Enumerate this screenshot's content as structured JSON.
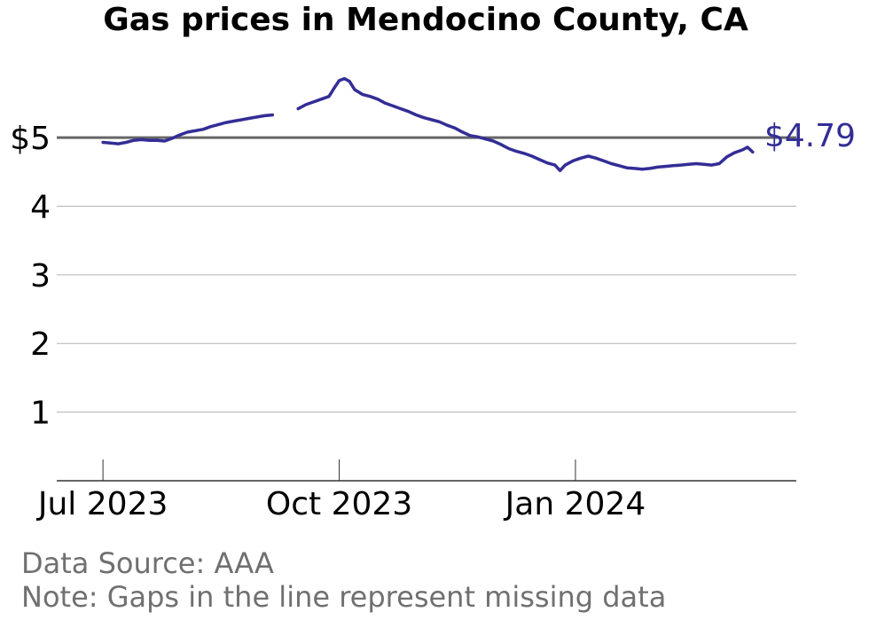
{
  "chart_data": {
    "type": "line",
    "title": "Gas prices in Mendocino County, CA",
    "xlabel": "",
    "ylabel": "",
    "y_ticks": [
      {
        "value": 1,
        "label": "1"
      },
      {
        "value": 2,
        "label": "2"
      },
      {
        "value": 3,
        "label": "3"
      },
      {
        "value": 4,
        "label": "4"
      },
      {
        "value": 5,
        "label": "$5"
      }
    ],
    "ylim": [
      0,
      6.1
    ],
    "x_ticks": [
      {
        "value": "2023-07-01",
        "label": "Jul 2023"
      },
      {
        "value": "2023-10-01",
        "label": "Oct 2023"
      },
      {
        "value": "2024-01-01",
        "label": "Jan 2024"
      }
    ],
    "xlim": [
      "2023-06-13",
      "2024-03-27"
    ],
    "reference_line": {
      "value": 5
    },
    "last_value_label": "$4.79",
    "grid": true,
    "colors": {
      "line": "#332d96",
      "reference": "#666666",
      "grid": "#b3b3b3",
      "axis": "#333333"
    },
    "series": [
      {
        "segments": [
          [
            [
              "2023-07-01",
              4.93
            ],
            [
              "2023-07-04",
              4.92
            ],
            [
              "2023-07-07",
              4.91
            ],
            [
              "2023-07-10",
              4.93
            ],
            [
              "2023-07-13",
              4.96
            ],
            [
              "2023-07-16",
              4.97
            ],
            [
              "2023-07-19",
              4.96
            ],
            [
              "2023-07-22",
              4.96
            ],
            [
              "2023-07-25",
              4.95
            ],
            [
              "2023-07-28",
              4.99
            ],
            [
              "2023-07-31",
              5.04
            ],
            [
              "2023-08-03",
              5.08
            ],
            [
              "2023-08-06",
              5.1
            ],
            [
              "2023-08-09",
              5.12
            ],
            [
              "2023-08-12",
              5.16
            ],
            [
              "2023-08-15",
              5.19
            ],
            [
              "2023-08-18",
              5.22
            ],
            [
              "2023-08-21",
              5.24
            ],
            [
              "2023-08-24",
              5.26
            ],
            [
              "2023-08-27",
              5.28
            ],
            [
              "2023-08-30",
              5.3
            ],
            [
              "2023-09-02",
              5.32
            ],
            [
              "2023-09-05",
              5.33
            ]
          ],
          [
            [
              "2023-09-15",
              5.42
            ],
            [
              "2023-09-18",
              5.48
            ],
            [
              "2023-09-21",
              5.52
            ],
            [
              "2023-09-24",
              5.56
            ],
            [
              "2023-09-27",
              5.6
            ],
            [
              "2023-09-29",
              5.72
            ],
            [
              "2023-10-01",
              5.83
            ],
            [
              "2023-10-03",
              5.86
            ],
            [
              "2023-10-05",
              5.82
            ],
            [
              "2023-10-07",
              5.7
            ],
            [
              "2023-10-10",
              5.63
            ],
            [
              "2023-10-13",
              5.6
            ],
            [
              "2023-10-16",
              5.56
            ],
            [
              "2023-10-19",
              5.5
            ],
            [
              "2023-10-22",
              5.46
            ],
            [
              "2023-10-25",
              5.42
            ],
            [
              "2023-10-28",
              5.38
            ],
            [
              "2023-10-31",
              5.33
            ],
            [
              "2023-11-03",
              5.29
            ],
            [
              "2023-11-06",
              5.26
            ],
            [
              "2023-11-09",
              5.23
            ],
            [
              "2023-11-12",
              5.18
            ],
            [
              "2023-11-15",
              5.14
            ],
            [
              "2023-11-18",
              5.08
            ],
            [
              "2023-11-21",
              5.03
            ],
            [
              "2023-11-24",
              5.01
            ],
            [
              "2023-11-27",
              4.98
            ],
            [
              "2023-11-30",
              4.95
            ],
            [
              "2023-12-03",
              4.9
            ],
            [
              "2023-12-06",
              4.84
            ],
            [
              "2023-12-09",
              4.8
            ],
            [
              "2023-12-12",
              4.77
            ],
            [
              "2023-12-15",
              4.73
            ],
            [
              "2023-12-18",
              4.68
            ],
            [
              "2023-12-21",
              4.63
            ],
            [
              "2023-12-24",
              4.6
            ],
            [
              "2023-12-26",
              4.52
            ],
            [
              "2023-12-28",
              4.6
            ],
            [
              "2023-12-31",
              4.66
            ],
            [
              "2024-01-03",
              4.7
            ],
            [
              "2024-01-06",
              4.73
            ],
            [
              "2024-01-09",
              4.7
            ],
            [
              "2024-01-12",
              4.66
            ],
            [
              "2024-01-15",
              4.62
            ],
            [
              "2024-01-18",
              4.59
            ],
            [
              "2024-01-21",
              4.56
            ],
            [
              "2024-01-24",
              4.55
            ],
            [
              "2024-01-27",
              4.54
            ],
            [
              "2024-01-30",
              4.55
            ],
            [
              "2024-02-02",
              4.57
            ],
            [
              "2024-02-05",
              4.58
            ],
            [
              "2024-02-08",
              4.59
            ],
            [
              "2024-02-11",
              4.6
            ],
            [
              "2024-02-14",
              4.61
            ],
            [
              "2024-02-17",
              4.62
            ],
            [
              "2024-02-20",
              4.61
            ],
            [
              "2024-02-23",
              4.6
            ],
            [
              "2024-02-26",
              4.62
            ],
            [
              "2024-02-29",
              4.72
            ],
            [
              "2024-03-03",
              4.78
            ],
            [
              "2024-03-06",
              4.82
            ],
            [
              "2024-03-08",
              4.86
            ],
            [
              "2024-03-10",
              4.79
            ]
          ]
        ]
      }
    ]
  },
  "footer": {
    "source": "Data Source: AAA",
    "note": "Note: Gaps in the line represent missing data"
  }
}
